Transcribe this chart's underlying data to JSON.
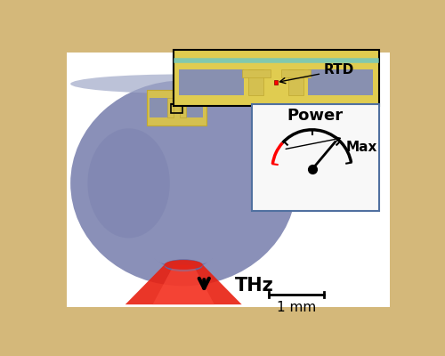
{
  "background_color": "#d4b87a",
  "main_bg": "#ffffff",
  "lens_color": "#8a90b8",
  "lens_highlight": "#a0a8c8",
  "lens_dark": "#7078a8",
  "gold_color": "#d4c050",
  "gold_dark": "#c0a830",
  "red_beam_color": "#e82010",
  "red_beam_light": "#ff5040",
  "inset_bg": "#e0cc50",
  "inset2_bg": "#f8f8f8",
  "border_color": "#5070a0",
  "cyan_line": "#70c8c0",
  "slot_color": "#8890b0",
  "thz_text": "THz",
  "scalebar_text": "1 mm",
  "rtd_text": "RTD",
  "power_text": "Power",
  "max_text": "Max",
  "fig_width": 5.0,
  "fig_height": 4.0,
  "dpi": 100
}
